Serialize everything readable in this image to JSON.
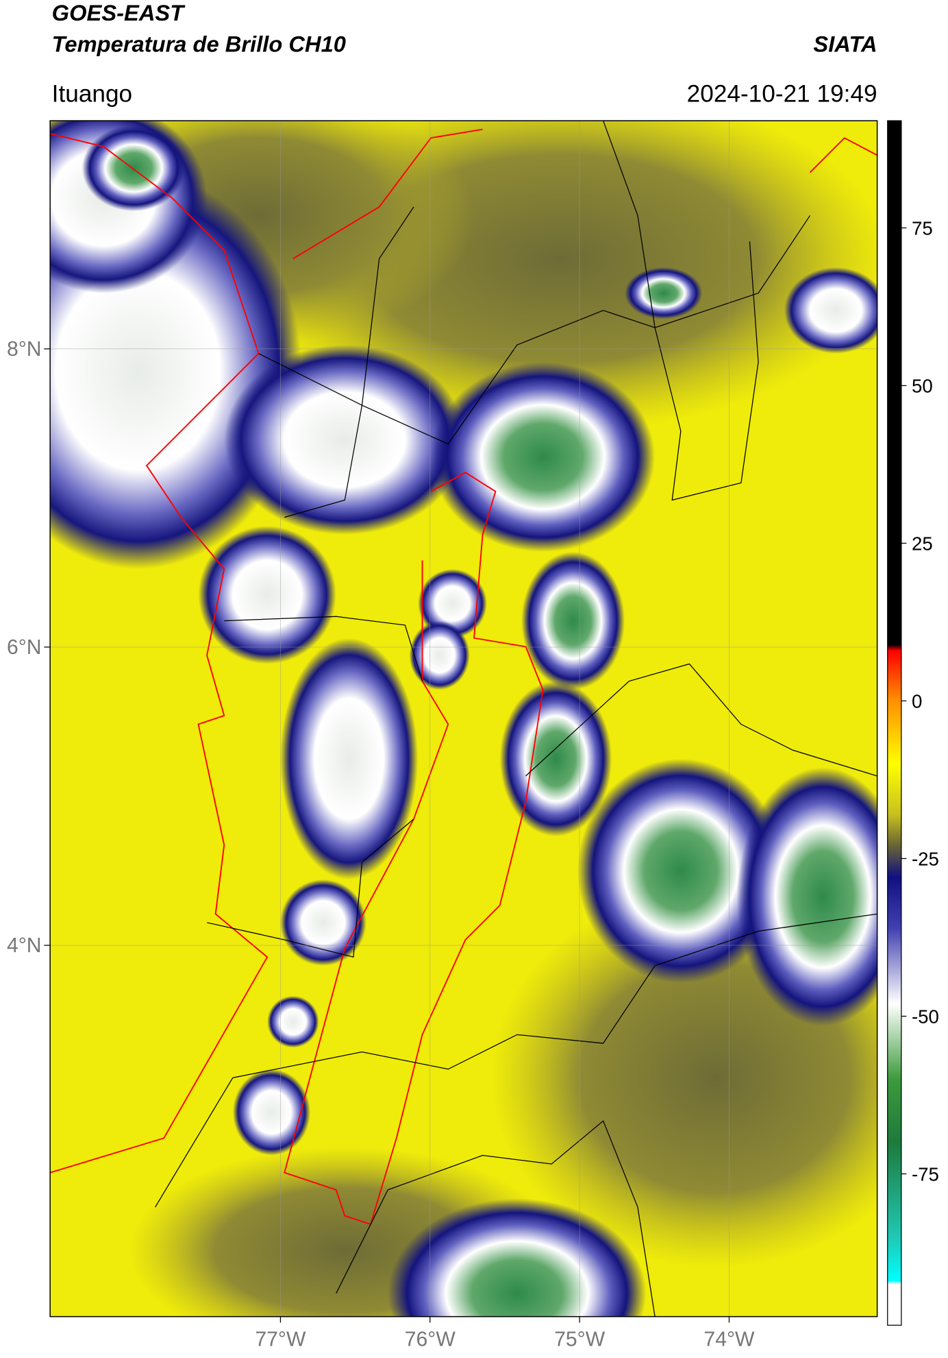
{
  "chart_data": {
    "type": "map",
    "title": "GOES-EAST",
    "subtitle": "Temperatura de Brillo CH10",
    "source": "SIATA",
    "location": "Ituango",
    "datetime": "2024-10-21 19:49",
    "xlim": [
      -78.54,
      -73.01
    ],
    "ylim": [
      1.51,
      9.53
    ],
    "xticks": [
      {
        "value": -77,
        "label": "77°W"
      },
      {
        "value": -76,
        "label": "76°W"
      },
      {
        "value": -75,
        "label": "75°W"
      },
      {
        "value": -74,
        "label": "74°W"
      }
    ],
    "yticks": [
      {
        "value": 8,
        "label": "8°N"
      },
      {
        "value": 6,
        "label": "6°N"
      },
      {
        "value": 4,
        "label": "4°N"
      }
    ],
    "grid": true,
    "colorbar": {
      "lim": [
        -99,
        92
      ],
      "ticks": [
        75,
        50,
        25,
        0,
        -25,
        -50,
        -75
      ]
    }
  }
}
